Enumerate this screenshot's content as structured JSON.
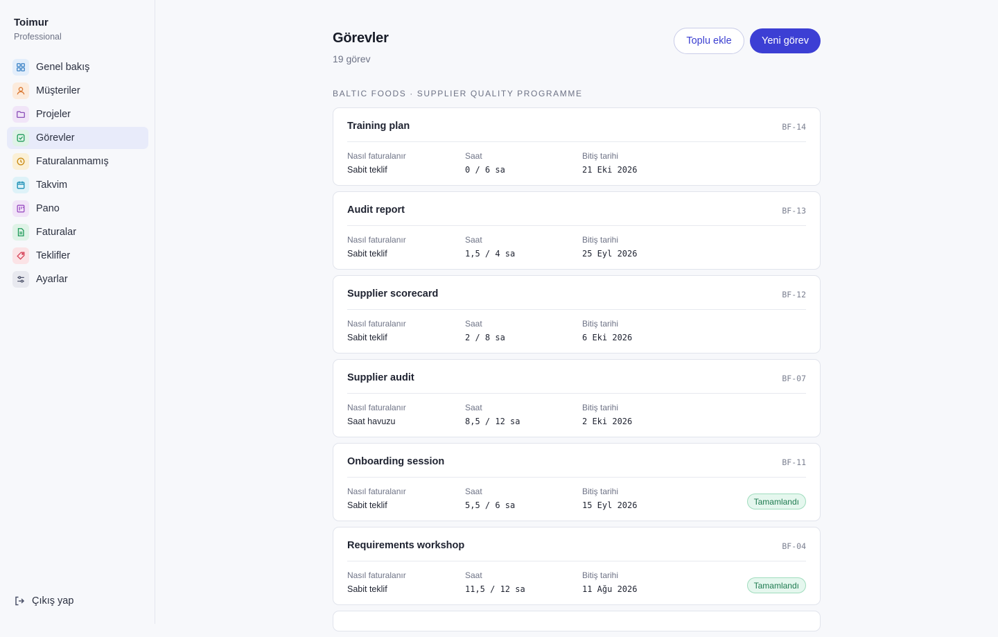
{
  "brand": {
    "name": "Toimur",
    "plan": "Professional"
  },
  "nav": [
    {
      "label": "Genel bakış",
      "icon": "grid-icon",
      "color": "#3b82c6",
      "bg": "#e3eefb",
      "active": false
    },
    {
      "label": "Müşteriler",
      "icon": "user-icon",
      "color": "#d97731",
      "bg": "#fcebdc",
      "active": false
    },
    {
      "label": "Projeler",
      "icon": "folder-icon",
      "color": "#8b4fb8",
      "bg": "#f1e5f8",
      "active": false
    },
    {
      "label": "Görevler",
      "icon": "checkbox-icon",
      "color": "#1f9a5a",
      "bg": "#dff3e7",
      "active": true
    },
    {
      "label": "Faturalanmamış",
      "icon": "clock-icon",
      "color": "#c98a12",
      "bg": "#fbf0d6",
      "active": false
    },
    {
      "label": "Takvim",
      "icon": "calendar-icon",
      "color": "#1a8fb5",
      "bg": "#def2f8",
      "active": false
    },
    {
      "label": "Pano",
      "icon": "board-icon",
      "color": "#9b4fc2",
      "bg": "#f1e4f8",
      "active": false
    },
    {
      "label": "Faturalar",
      "icon": "document-icon",
      "color": "#1f9a5a",
      "bg": "#dff3e7",
      "active": false
    },
    {
      "label": "Teklifler",
      "icon": "tag-icon",
      "color": "#d6455a",
      "bg": "#fbe3e6",
      "active": false
    },
    {
      "label": "Ayarlar",
      "icon": "sliders-icon",
      "color": "#4a5068",
      "bg": "#e8e9ef",
      "active": false
    }
  ],
  "logout_label": "Çıkış yap",
  "header": {
    "title": "Görevler",
    "count": "19 görev",
    "bulk_add_label": "Toplu ekle",
    "new_task_label": "Yeni görev"
  },
  "group_title": "Baltic Foods · Supplier Quality Programme",
  "labels": {
    "billing": "Nasıl faturalanır",
    "hours": "Saat",
    "due": "Bitiş tarihi"
  },
  "tasks": [
    {
      "title": "Training plan",
      "code": "BF-14",
      "billing": "Sabit teklif",
      "hours": "0 / 6 sa",
      "due": "21 Eki 2026",
      "status": ""
    },
    {
      "title": "Audit report",
      "code": "BF-13",
      "billing": "Sabit teklif",
      "hours": "1,5 / 4 sa",
      "due": "25 Eyl 2026",
      "status": ""
    },
    {
      "title": "Supplier scorecard",
      "code": "BF-12",
      "billing": "Sabit teklif",
      "hours": "2 / 8 sa",
      "due": "6 Eki 2026",
      "status": ""
    },
    {
      "title": "Supplier audit",
      "code": "BF-07",
      "billing": "Saat havuzu",
      "hours": "8,5 / 12 sa",
      "due": "2 Eki 2026",
      "status": ""
    },
    {
      "title": "Onboarding session",
      "code": "BF-11",
      "billing": "Sabit teklif",
      "hours": "5,5 / 6 sa",
      "due": "15 Eyl 2026",
      "status": "Tamamlandı"
    },
    {
      "title": "Requirements workshop",
      "code": "BF-04",
      "billing": "Sabit teklif",
      "hours": "11,5 / 12 sa",
      "due": "11 Ağu 2026",
      "status": "Tamamlandı"
    }
  ],
  "colors": {
    "accent": "#3c3fd4",
    "done_badge": "#1d7a4f"
  }
}
